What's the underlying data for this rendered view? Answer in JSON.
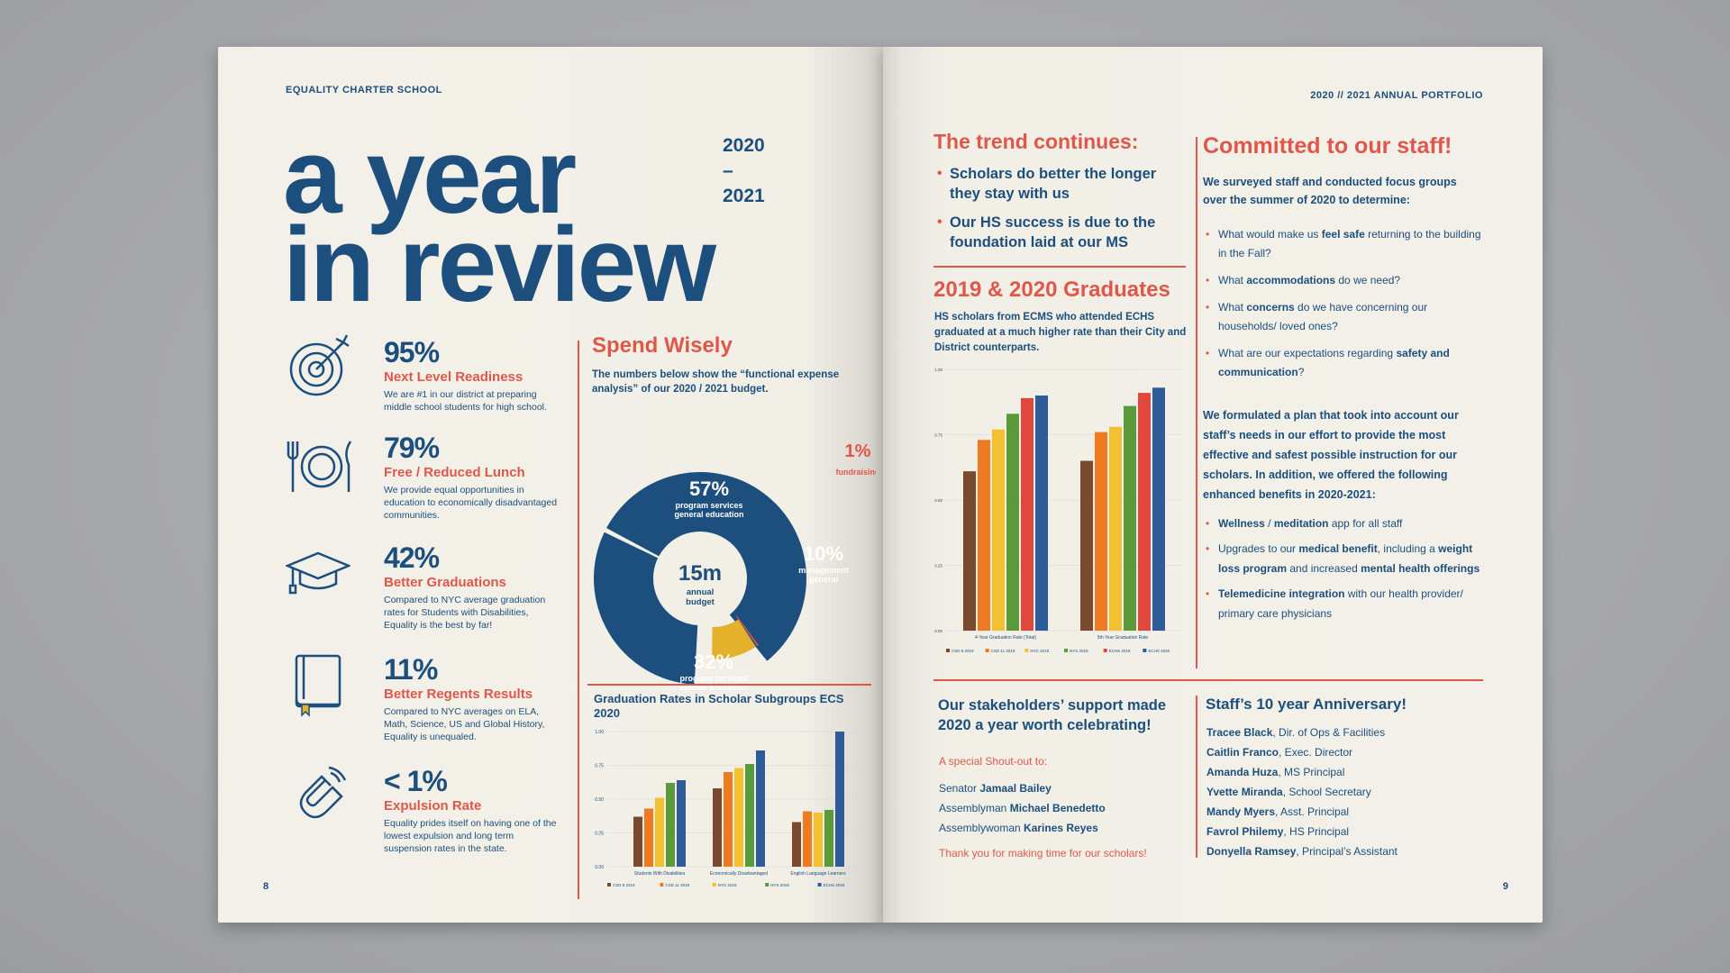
{
  "left_page": {
    "school_name": "EQUALITY CHARTER SCHOOL",
    "title_line1": "a year",
    "title_line2": "in review",
    "years": {
      "start": "2020",
      "dash": "–",
      "end": "2021"
    },
    "stats": [
      {
        "icon": "target-icon",
        "pct": "95%",
        "label": "Next Level Readiness",
        "desc": "We are #1 in our district at preparing middle school students for high school."
      },
      {
        "icon": "plate-utensils-icon",
        "pct": "79%",
        "label": "Free / Reduced Lunch",
        "desc": "We provide equal opportunities in education to economically disadvantaged communities."
      },
      {
        "icon": "graduation-cap-icon",
        "pct": "42%",
        "label": "Better Graduations",
        "desc": "Compared to NYC average graduation rates for Students with Disabilities, Equality is the best by far!"
      },
      {
        "icon": "book-icon",
        "pct": "11%",
        "label": "Better Regents Results",
        "desc": "Compared to NYC averages on ELA, Math, Science, US and Global History, Equality is unequaled."
      },
      {
        "icon": "magnet-icon",
        "pct": "< 1%",
        "label": "Expulsion Rate",
        "desc": "Equality prides itself on having one of the lowest expulsion and long term suspension rates in the state."
      }
    ],
    "spend": {
      "title": "Spend Wisely",
      "desc": "The numbers below show the “functional expense analysis” of our 2020 / 2021 budget.",
      "center_value": "15m",
      "center_label1": "annual",
      "center_label2": "budget"
    },
    "page_number": "8"
  },
  "right_page": {
    "portfolio_label": "2020 // 2021 ANNUAL PORTFOLIO",
    "trend_title": "The trend continues:",
    "trend_points": [
      "Scholars do better the longer they stay with us",
      "Our HS success is due to the foundation laid at our MS"
    ],
    "grads_title": "2019 & 2020 Graduates",
    "grads_desc": "HS scholars from ECMS who attended ECHS graduated at a much higher rate than their City and District counterparts.",
    "committed_title": "Committed to our staff!",
    "committed_intro": "We surveyed staff and conducted focus groups over the summer of 2020 to determine:",
    "questions": [
      {
        "pre": "What would make us ",
        "bold": "feel safe",
        "post": " returning to the building in the Fall?"
      },
      {
        "pre": "What ",
        "bold": "accommodations",
        "post": " do we need?"
      },
      {
        "pre": "What ",
        "bold": "concerns",
        "post": " do we have concerning our households/ loved ones?"
      },
      {
        "pre": "What are our expectations regarding ",
        "bold": "safety and communication",
        "post": "?"
      }
    ],
    "formulated": "We formulated a plan that took into account our staff’s needs in our effort to provide the most effective and safest possible instruction for our scholars. In addition, we offered the following enhanced benefits in 2020-2021:",
    "benefits": [
      {
        "b1": "Wellness",
        "t1": " / ",
        "b2": "meditation",
        "t2": " app for all staff",
        "b3": "",
        "t3": ""
      },
      {
        "b1": "",
        "t1": "Upgrades to our ",
        "b2": "medical benefit",
        "t2": ", including a ",
        "b3": "weight loss program",
        "t3": " and increased mental health offerings"
      },
      {
        "b1": "Telemedicine integration",
        "t1": " with our health provider/ primary care physicians",
        "b2": "",
        "t2": "",
        "b3": "",
        "t3": ""
      }
    ],
    "support_title": "Our stakeholders’ support made 2020 a year worth celebrating!",
    "shout_label": "A special Shout-out to:",
    "officials": [
      {
        "role": "Senator ",
        "name": "Jamaal Bailey"
      },
      {
        "role": "Assemblyman ",
        "name": "Michael Benedetto"
      },
      {
        "role": "Assemblywoman ",
        "name": "Karines Reyes"
      }
    ],
    "thanks": "Thank you for making time for our scholars!",
    "anniv_title": "Staff’s 10 year Anniversary!",
    "anniversary": [
      {
        "name": "Tracee Black",
        "role": ", Dir. of Ops & Facilities"
      },
      {
        "name": "Caitlin Franco",
        "role": ", Exec. Director"
      },
      {
        "name": "Amanda Huza",
        "role": ", MS Principal"
      },
      {
        "name": "Yvette Miranda",
        "role": ", School Secretary"
      },
      {
        "name": "Mandy Myers",
        "role": ", Asst. Principal"
      },
      {
        "name": "Favrol Philemy",
        "role": ", HS Principal"
      },
      {
        "name": "Donyella Ramsey",
        "role": ", Principal’s Assistant"
      }
    ],
    "page_number": "9"
  },
  "colors": {
    "navy": "#1c4f7e",
    "red": "#e0574a",
    "yellow": "#e3b12a",
    "paper": "#f1efe6"
  },
  "chart_data": [
    {
      "type": "pie",
      "title": "Spend Wisely",
      "slices": [
        {
          "label": "program services general education",
          "value": 57,
          "color": "#1c4f7e"
        },
        {
          "label": "fundraising",
          "value": 1,
          "color": "#e0574a"
        },
        {
          "label": "management general",
          "value": 10,
          "color": "#e3b12a"
        },
        {
          "label": "program services special education",
          "value": 32,
          "color": "#1c4f7e"
        }
      ]
    },
    {
      "type": "bar",
      "title": "Graduation Rates in Scholar Subgroups ECS 2020",
      "categories": [
        "Students With Disabilities",
        "Economically Disadvantaged",
        "English Language Learners"
      ],
      "ylim": [
        0,
        1.0
      ],
      "yticks": [
        "0.00",
        "0.25",
        "0.50",
        "0.75",
        "1.00"
      ],
      "series": [
        {
          "name": "CSD 8 2019",
          "color": "#7a4a2e",
          "values": [
            0.37,
            0.58,
            0.33
          ]
        },
        {
          "name": "CSD 11 2019",
          "color": "#ee7a22",
          "values": [
            0.43,
            0.7,
            0.41
          ]
        },
        {
          "name": "NYC 2019",
          "color": "#f3c12f",
          "values": [
            0.51,
            0.73,
            0.4
          ]
        },
        {
          "name": "NYS 2019",
          "color": "#5a9a3a",
          "values": [
            0.62,
            0.76,
            0.42
          ]
        },
        {
          "name": "ECHS 2020",
          "color": "#2d5c98",
          "values": [
            0.64,
            0.86,
            1.0
          ]
        }
      ]
    },
    {
      "type": "bar",
      "title": "2019 & 2020 Graduates",
      "categories": [
        "4-Year Graduation Rate (Total)",
        "5th Year Graduation Rate"
      ],
      "ylim": [
        0,
        1.0
      ],
      "yticks": [
        "0.00",
        "0.25",
        "0.50",
        "0.75",
        "1.00"
      ],
      "series": [
        {
          "name": "CSD 8 2019",
          "color": "#7a4a2e",
          "values": [
            0.61,
            0.65
          ]
        },
        {
          "name": "CSD 11 2019",
          "color": "#ee7a22",
          "values": [
            0.73,
            0.76
          ]
        },
        {
          "name": "NYC 2019",
          "color": "#f3c12f",
          "values": [
            0.77,
            0.78
          ]
        },
        {
          "name": "NYS 2019",
          "color": "#5a9a3a",
          "values": [
            0.83,
            0.86
          ]
        },
        {
          "name": "ECHS 2019",
          "color": "#e0473d",
          "values": [
            0.89,
            0.91
          ]
        },
        {
          "name": "ECHS 2020",
          "color": "#2d5c98",
          "values": [
            0.9,
            0.93
          ]
        }
      ]
    }
  ]
}
